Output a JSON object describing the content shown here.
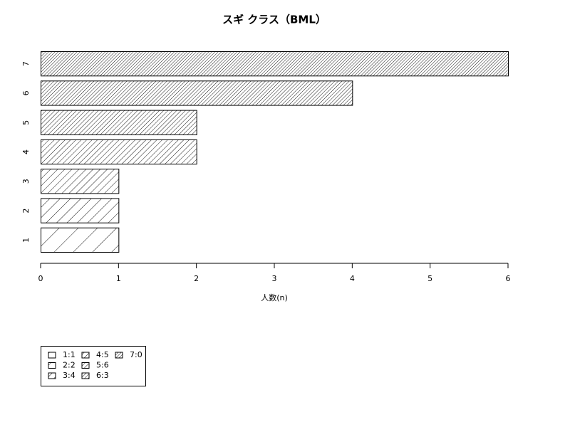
{
  "chart_data": {
    "type": "bar",
    "orientation": "horizontal",
    "title": "スギ クラス（BML）",
    "xlabel": "人数(n)",
    "categories": [
      "1",
      "2",
      "3",
      "4",
      "5",
      "6",
      "7"
    ],
    "values": [
      1,
      1,
      1,
      2,
      2,
      4,
      6
    ],
    "color": "#000000",
    "xlim": [
      0,
      6
    ],
    "xticks": [
      0,
      1,
      2,
      3,
      4,
      5,
      6
    ],
    "legend": [
      "1:1",
      "2:2",
      "3:4",
      "4:5",
      "5:6",
      "6:3",
      "7:0"
    ]
  }
}
